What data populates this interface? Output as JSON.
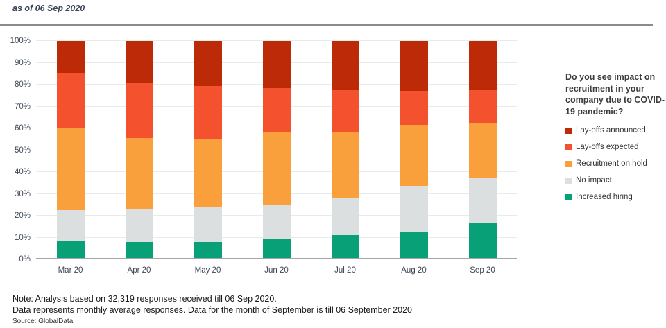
{
  "header": {
    "as_of": "as of 06 Sep 2020"
  },
  "chart_data": {
    "type": "bar",
    "stacked": true,
    "categories": [
      "Mar 20",
      "Apr 20",
      "May 20",
      "Jun 20",
      "Jul 20",
      "Aug 20",
      "Sep 20"
    ],
    "series": [
      {
        "name": "Increased hiring",
        "color": "#08a077",
        "values": [
          8.5,
          8.0,
          8.0,
          9.5,
          11.0,
          12.5,
          16.5
        ]
      },
      {
        "name": "No impact",
        "color": "#dbdfdf",
        "values": [
          14.0,
          15.0,
          16.0,
          15.5,
          17.0,
          21.0,
          21.0
        ]
      },
      {
        "name": "Recruitment on hold",
        "color": "#f9a03c",
        "values": [
          37.5,
          32.5,
          31.0,
          33.0,
          30.0,
          28.0,
          25.0
        ]
      },
      {
        "name": "Lay-offs expected",
        "color": "#f4512f",
        "values": [
          25.5,
          25.5,
          24.5,
          20.5,
          19.5,
          15.5,
          15.0
        ]
      },
      {
        "name": "Lay-offs announced",
        "color": "#bd2a07",
        "values": [
          14.5,
          19.0,
          20.5,
          21.5,
          22.5,
          23.0,
          22.5
        ]
      }
    ],
    "title": "",
    "xlabel": "",
    "ylabel": "",
    "ylim": [
      0,
      100
    ],
    "y_tick_step": 10,
    "y_tick_suffix": "%",
    "grid": true,
    "legend_position": "right",
    "legend_title": "Do you see impact on recruitment in your company due to COVID-19 pandemic?",
    "legend_order": [
      "Lay-offs announced",
      "Lay-offs expected",
      "Recruitment on hold",
      "No impact",
      "Increased hiring"
    ]
  },
  "notes": {
    "line1": "Note: Analysis based on 32,319 responses received till 06 Sep 2020.",
    "line2": "Data represents monthly average responses. Data for the month of September is till 06 September 2020",
    "source": "Source: GlobalData"
  }
}
